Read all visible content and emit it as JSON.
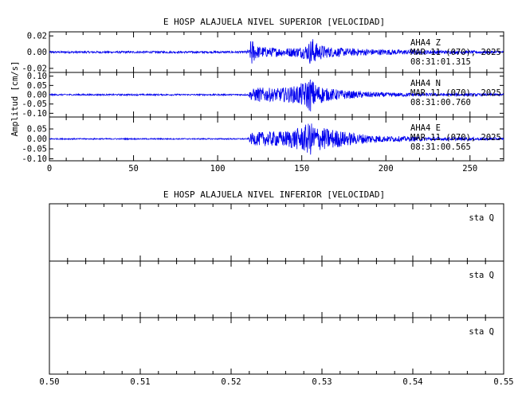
{
  "chart_data": [
    {
      "type": "line",
      "title": "E HOSP ALAJUELA NIVEL SUPERIOR [VELOCIDAD]",
      "ylabel": "Amplitud [cm/s]",
      "xlabel": "",
      "xlim": [
        0,
        270
      ],
      "xticks": [
        0,
        50,
        100,
        150,
        200,
        250
      ],
      "grid": false,
      "line_color": "#0000ee",
      "panels": [
        {
          "name": "AHA4 Z",
          "annotation": [
            "AHA4   Z",
            "MAR 11 (070), 2025",
            "08:31:01.315"
          ],
          "ylim": [
            -0.025,
            0.025
          ],
          "yticks": [
            0.02,
            0.0,
            -0.02
          ],
          "ytick_labels": [
            "0.02",
            "0.00",
            "-0.02"
          ],
          "envelope": [
            [
              0,
              0.0012
            ],
            [
              115,
              0.0013
            ],
            [
              119,
              0.003
            ],
            [
              120,
              0.022
            ],
            [
              121,
              0.014
            ],
            [
              123,
              0.008
            ],
            [
              130,
              0.006
            ],
            [
              140,
              0.005
            ],
            [
              150,
              0.007
            ],
            [
              154,
              0.011
            ],
            [
              156,
              0.02
            ],
            [
              158,
              0.012
            ],
            [
              165,
              0.007
            ],
            [
              175,
              0.005
            ],
            [
              190,
              0.004
            ],
            [
              210,
              0.003
            ],
            [
              240,
              0.002
            ],
            [
              270,
              0.0015
            ]
          ]
        },
        {
          "name": "AHA4 N",
          "annotation": [
            "AHA4   N",
            "MAR 11 (070), 2025",
            "08:31:00.760"
          ],
          "ylim": [
            -0.12,
            0.12
          ],
          "yticks": [
            0.1,
            0.05,
            0.0,
            -0.05,
            -0.1
          ],
          "ytick_labels": [
            "0.10",
            "0.05",
            "0.00",
            "-0.05",
            "-0.10"
          ],
          "envelope": [
            [
              0,
              0.004
            ],
            [
              118,
              0.004
            ],
            [
              120,
              0.03
            ],
            [
              124,
              0.04
            ],
            [
              135,
              0.035
            ],
            [
              145,
              0.045
            ],
            [
              152,
              0.07
            ],
            [
              155,
              0.095
            ],
            [
              158,
              0.06
            ],
            [
              165,
              0.035
            ],
            [
              180,
              0.02
            ],
            [
              200,
              0.012
            ],
            [
              230,
              0.008
            ],
            [
              270,
              0.006
            ]
          ]
        },
        {
          "name": "AHA4 E",
          "annotation": [
            "AHA4   E",
            "MAR 11 (070), 2025",
            "08:31:00.565"
          ],
          "ylim": [
            -0.11,
            0.11
          ],
          "yticks": [
            0.05,
            0.0,
            -0.05,
            -0.1
          ],
          "ytick_labels": [
            "0.05",
            "0.00",
            "-0.05",
            "-0.10"
          ],
          "envelope": [
            [
              0,
              0.003
            ],
            [
              118,
              0.003
            ],
            [
              120,
              0.03
            ],
            [
              125,
              0.035
            ],
            [
              140,
              0.04
            ],
            [
              150,
              0.06
            ],
            [
              155,
              0.085
            ],
            [
              160,
              0.06
            ],
            [
              168,
              0.05
            ],
            [
              180,
              0.03
            ],
            [
              200,
              0.015
            ],
            [
              230,
              0.009
            ],
            [
              270,
              0.006
            ]
          ]
        }
      ]
    },
    {
      "type": "line",
      "title": "E HOSP ALAJUELA NIVEL INFERIOR [VELOCIDAD]",
      "ylabel": "",
      "xlabel": "",
      "xlim": [
        0.5,
        0.55
      ],
      "xticks": [
        0.5,
        0.51,
        0.52,
        0.53,
        0.54,
        0.55
      ],
      "xtick_labels": [
        "0.50",
        "0.51",
        "0.52",
        "0.53",
        "0.54",
        "0.55"
      ],
      "grid": false,
      "panels": [
        {
          "name": "sta Q",
          "annotation": [
            "sta   Q"
          ]
        },
        {
          "name": "sta Q",
          "annotation": [
            "sta   Q"
          ]
        },
        {
          "name": "sta Q",
          "annotation": [
            "sta   Q"
          ]
        }
      ]
    }
  ]
}
